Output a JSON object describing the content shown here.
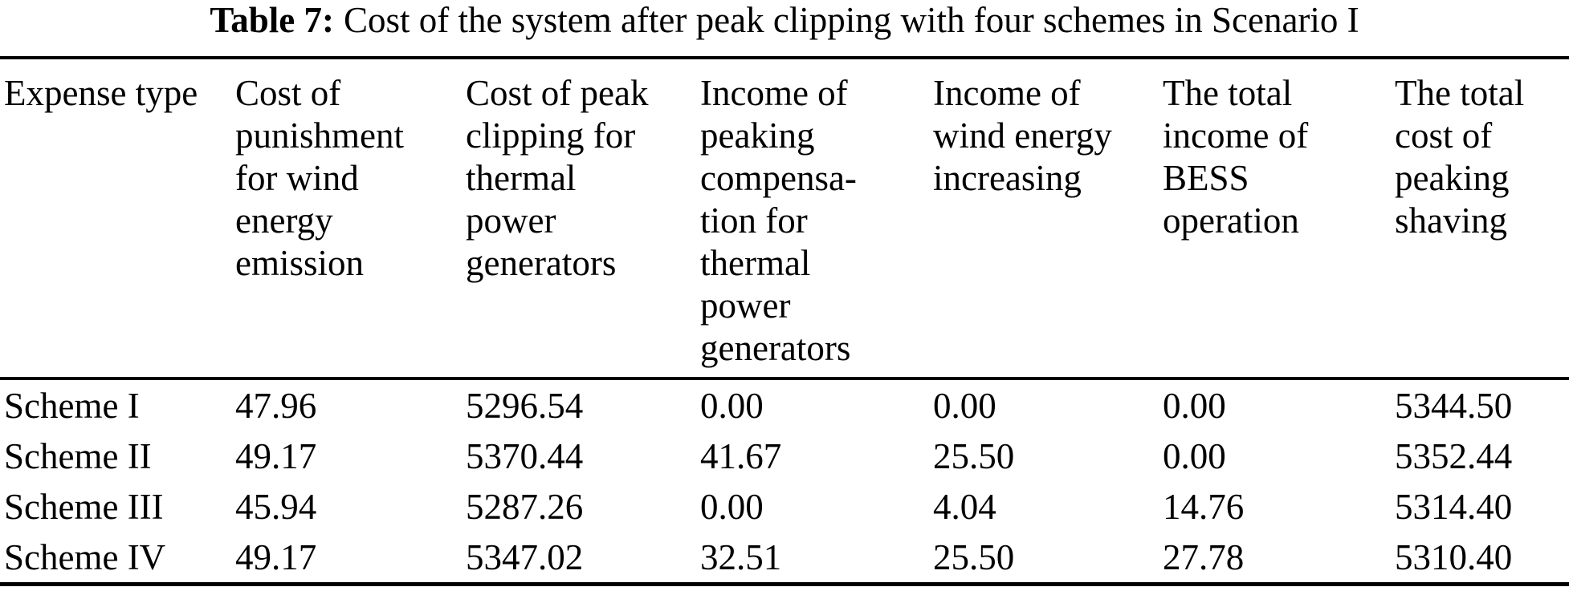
{
  "caption": {
    "label": "Table 7:",
    "text": "Cost of the system after peak clipping with four schemes in Scenario I"
  },
  "table": {
    "headers": [
      "Expense type",
      "Cost of\npunishment\nfor wind\nenergy\nemission",
      "Cost of peak\nclipping for\nthermal\npower\ngenerators",
      "Income of\npeaking\ncompensa-\ntion for\nthermal\npower\ngenerators",
      "Income of\nwind energy\nincreasing",
      "The total\nincome of\nBESS\noperation",
      "The total\ncost of\npeaking\nshaving"
    ],
    "rows": [
      {
        "label": "Scheme I",
        "values": [
          "47.96",
          "5296.54",
          "0.00",
          "0.00",
          "0.00",
          "5344.50"
        ]
      },
      {
        "label": "Scheme II",
        "values": [
          "49.17",
          "5370.44",
          "41.67",
          "25.50",
          "0.00",
          "5352.44"
        ]
      },
      {
        "label": "Scheme III",
        "values": [
          "45.94",
          "5287.26",
          "0.00",
          "4.04",
          "14.76",
          "5314.40"
        ]
      },
      {
        "label": "Scheme IV",
        "values": [
          "49.17",
          "5347.02",
          "32.51",
          "25.50",
          "27.78",
          "5310.40"
        ]
      }
    ]
  },
  "colors": {
    "text": "#000000",
    "background": "#ffffff",
    "rule": "#000000"
  }
}
